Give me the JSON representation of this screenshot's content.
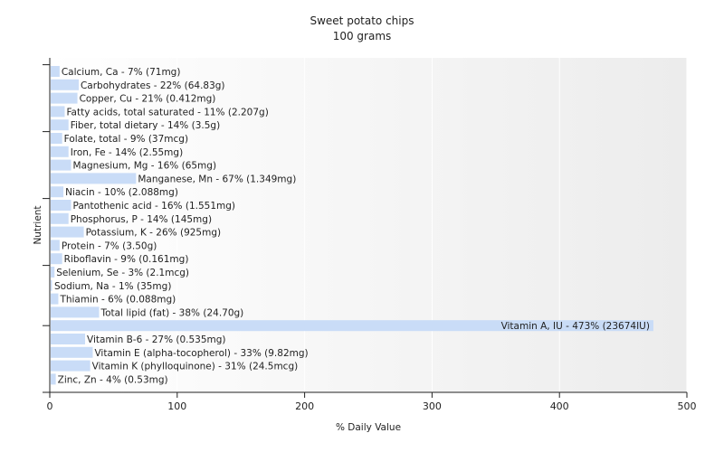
{
  "chart_data": {
    "type": "bar",
    "orientation": "horizontal",
    "title": "Sweet potato chips",
    "subtitle": "100 grams",
    "xlabel": "% Daily Value",
    "ylabel": "Nutrient",
    "xlim": [
      0,
      500
    ],
    "xticks": [
      0,
      100,
      200,
      300,
      400,
      500
    ],
    "grid": true,
    "bar_color": "#c9dcf7",
    "categories": [
      "Calcium, Ca",
      "Carbohydrates",
      "Copper, Cu",
      "Fatty acids, total saturated",
      "Fiber, total dietary",
      "Folate, total",
      "Iron, Fe",
      "Magnesium, Mg",
      "Manganese, Mn",
      "Niacin",
      "Pantothenic acid",
      "Phosphorus, P",
      "Potassium, K",
      "Protein",
      "Riboflavin",
      "Selenium, Se",
      "Sodium, Na",
      "Thiamin",
      "Total lipid (fat)",
      "Vitamin A, IU",
      "Vitamin B-6",
      "Vitamin E (alpha-tocopherol)",
      "Vitamin K (phylloquinone)",
      "Zinc, Zn"
    ],
    "values": [
      7,
      22,
      21,
      11,
      14,
      9,
      14,
      16,
      67,
      10,
      16,
      14,
      26,
      7,
      9,
      3,
      1,
      6,
      38,
      473,
      27,
      33,
      31,
      4
    ],
    "labels": [
      "Calcium, Ca - 7% (71mg)",
      "Carbohydrates - 22% (64.83g)",
      "Copper, Cu - 21% (0.412mg)",
      "Fatty acids, total saturated - 11% (2.207g)",
      "Fiber, total dietary - 14% (3.5g)",
      "Folate, total - 9% (37mcg)",
      "Iron, Fe - 14% (2.55mg)",
      "Magnesium, Mg - 16% (65mg)",
      "Manganese, Mn - 67% (1.349mg)",
      "Niacin - 10% (2.088mg)",
      "Pantothenic acid - 16% (1.551mg)",
      "Phosphorus, P - 14% (145mg)",
      "Potassium, K - 26% (925mg)",
      "Protein - 7% (3.50g)",
      "Riboflavin - 9% (0.161mg)",
      "Selenium, Se - 3% (2.1mcg)",
      "Sodium, Na - 1% (35mg)",
      "Thiamin - 6% (0.088mg)",
      "Total lipid (fat) - 38% (24.70g)",
      "Vitamin A, IU - 473% (23674IU)",
      "Vitamin B-6 - 27% (0.535mg)",
      "Vitamin E (alpha-tocopherol) - 33% (9.82mg)",
      "Vitamin K (phylloquinone) - 31% (24.5mcg)",
      "Zinc, Zn - 4% (0.53mg)"
    ]
  }
}
